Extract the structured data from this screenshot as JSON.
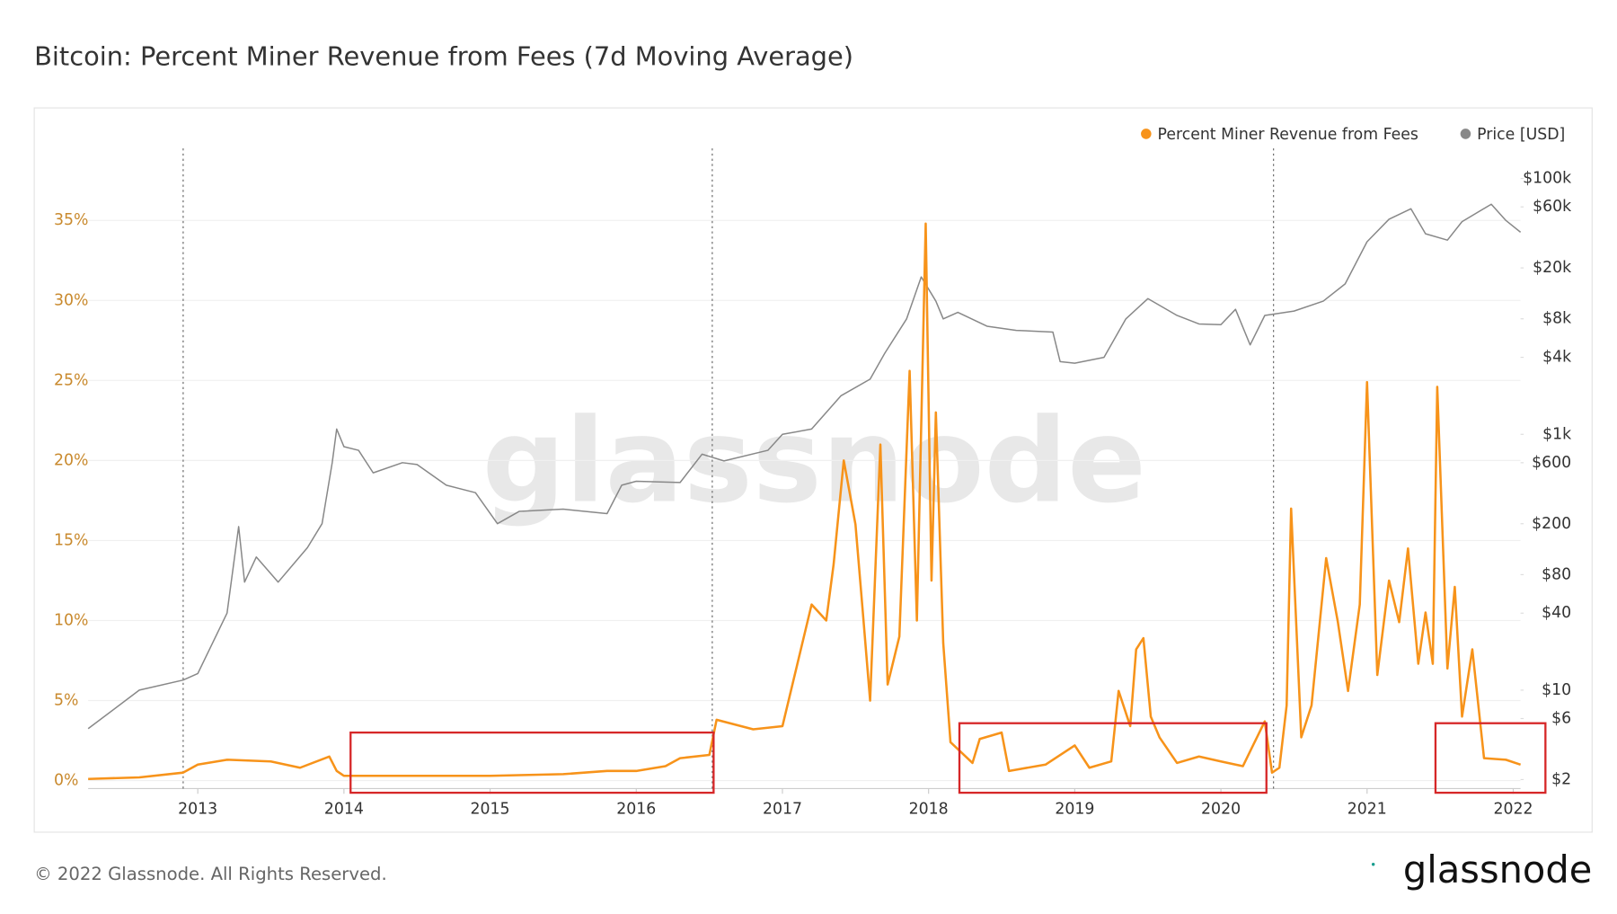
{
  "chart_data": {
    "type": "line",
    "title": "Bitcoin: Percent Miner Revenue from Fees (7d Moving Average)",
    "footer": "© 2022 Glassnode. All Rights Reserved.",
    "logo": "glassnode",
    "watermark": "glassnode",
    "xlim": [
      2012.25,
      2022.05
    ],
    "xticks": [
      2013,
      2014,
      2015,
      2016,
      2017,
      2018,
      2019,
      2020,
      2021,
      2022
    ],
    "ylim": [
      -0.5,
      39.5
    ],
    "yticks": [
      {
        "value": 0,
        "label": "0%"
      },
      {
        "value": 5,
        "label": "5%"
      },
      {
        "value": 10,
        "label": "10%"
      },
      {
        "value": 15,
        "label": "15%"
      },
      {
        "value": 20,
        "label": "20%"
      },
      {
        "value": 25,
        "label": "25%"
      },
      {
        "value": 30,
        "label": "30%"
      },
      {
        "value": 35,
        "label": "35%"
      }
    ],
    "y2lim": [
      1.7,
      172000
    ],
    "y2log": true,
    "y2ticks": [
      {
        "value": 2,
        "label": "$2"
      },
      {
        "value": 6,
        "label": "$6"
      },
      {
        "value": 10,
        "label": "$10"
      },
      {
        "value": 40,
        "label": "$40"
      },
      {
        "value": 80,
        "label": "$80"
      },
      {
        "value": 200,
        "label": "$200"
      },
      {
        "value": 600,
        "label": "$600"
      },
      {
        "value": 1000,
        "label": "$1k"
      },
      {
        "value": 4000,
        "label": "$4k"
      },
      {
        "value": 8000,
        "label": "$8k"
      },
      {
        "value": 20000,
        "label": "$20k"
      },
      {
        "value": 60000,
        "label": "$60k"
      },
      {
        "value": 100000,
        "label": "$100k"
      }
    ],
    "grid": true,
    "halvings": [
      2012.9,
      2016.52,
      2020.36
    ],
    "series": [
      {
        "name": "Percent Miner Revenue from Fees",
        "color": "#f7931a",
        "axis": "y",
        "x": [
          2012.25,
          2012.6,
          2012.9,
          2013.0,
          2013.2,
          2013.5,
          2013.7,
          2013.9,
          2013.95,
          2014.0,
          2014.5,
          2015.0,
          2015.5,
          2015.8,
          2016.0,
          2016.2,
          2016.3,
          2016.5,
          2016.55,
          2016.8,
          2017.0,
          2017.2,
          2017.3,
          2017.35,
          2017.42,
          2017.5,
          2017.55,
          2017.6,
          2017.67,
          2017.72,
          2017.8,
          2017.87,
          2017.92,
          2017.98,
          2018.02,
          2018.05,
          2018.1,
          2018.15,
          2018.3,
          2018.35,
          2018.5,
          2018.55,
          2018.8,
          2019.0,
          2019.1,
          2019.25,
          2019.3,
          2019.38,
          2019.42,
          2019.47,
          2019.52,
          2019.58,
          2019.7,
          2019.85,
          2020.0,
          2020.15,
          2020.3,
          2020.35,
          2020.4,
          2020.45,
          2020.48,
          2020.55,
          2020.62,
          2020.72,
          2020.8,
          2020.87,
          2020.95,
          2021.0,
          2021.07,
          2021.15,
          2021.22,
          2021.28,
          2021.35,
          2021.4,
          2021.45,
          2021.48,
          2021.55,
          2021.6,
          2021.65,
          2021.72,
          2021.8,
          2021.95,
          2022.05
        ],
        "values": [
          0.1,
          0.2,
          0.5,
          1.0,
          1.3,
          1.2,
          0.8,
          1.5,
          0.6,
          0.3,
          0.3,
          0.3,
          0.4,
          0.6,
          0.6,
          0.9,
          1.4,
          1.6,
          3.8,
          3.2,
          3.4,
          11,
          10,
          13.5,
          20,
          16,
          10.5,
          5,
          21,
          6,
          9,
          25.6,
          10,
          34.8,
          12.5,
          23,
          8.6,
          2.4,
          1.1,
          2.6,
          3,
          0.6,
          1.0,
          2.2,
          0.8,
          1.2,
          5.6,
          3.4,
          8.2,
          8.9,
          4.0,
          2.7,
          1.1,
          1.5,
          1.2,
          0.9,
          3.7,
          0.5,
          0.8,
          4.7,
          17,
          2.7,
          4.7,
          13.9,
          9.9,
          5.6,
          11,
          24.9,
          6.6,
          12.5,
          9.9,
          14.5,
          7.3,
          10.5,
          7.3,
          24.6,
          7,
          12.1,
          4,
          8.2,
          1.4,
          1.3,
          1.0
        ]
      },
      {
        "name": "Price [USD]",
        "color": "#888888",
        "axis": "y2",
        "x": [
          2012.25,
          2012.6,
          2012.9,
          2013.0,
          2013.2,
          2013.28,
          2013.32,
          2013.4,
          2013.55,
          2013.75,
          2013.85,
          2013.92,
          2013.95,
          2014.0,
          2014.1,
          2014.2,
          2014.4,
          2014.5,
          2014.7,
          2014.9,
          2015.05,
          2015.2,
          2015.5,
          2015.8,
          2015.9,
          2016.0,
          2016.3,
          2016.45,
          2016.6,
          2016.9,
          2017.0,
          2017.2,
          2017.4,
          2017.6,
          2017.7,
          2017.85,
          2017.95,
          2018.05,
          2018.1,
          2018.2,
          2018.4,
          2018.6,
          2018.85,
          2018.9,
          2019.0,
          2019.2,
          2019.35,
          2019.5,
          2019.7,
          2019.85,
          2020.0,
          2020.1,
          2020.2,
          2020.3,
          2020.5,
          2020.7,
          2020.85,
          2021.0,
          2021.15,
          2021.3,
          2021.4,
          2021.55,
          2021.65,
          2021.85,
          2021.95,
          2022.05
        ],
        "values": [
          5,
          10,
          12,
          13.5,
          40,
          190,
          70,
          110,
          70,
          130,
          200,
          600,
          1100,
          800,
          750,
          500,
          600,
          580,
          400,
          350,
          200,
          250,
          260,
          240,
          400,
          430,
          420,
          700,
          620,
          750,
          1000,
          1100,
          2000,
          2700,
          4300,
          8000,
          17000,
          11000,
          8000,
          9000,
          7000,
          6500,
          6300,
          3700,
          3600,
          4000,
          8000,
          11500,
          8500,
          7300,
          7200,
          9500,
          5000,
          8500,
          9200,
          11000,
          15000,
          32000,
          48000,
          58000,
          37000,
          33000,
          46000,
          63000,
          47000,
          38000
        ]
      }
    ]
  }
}
